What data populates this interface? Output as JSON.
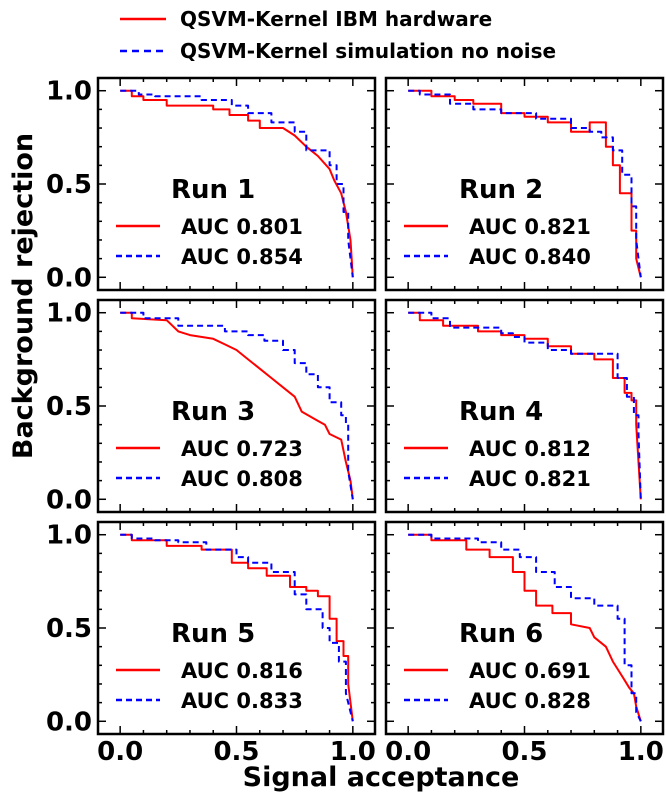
{
  "legend": {
    "hardware_label": "QSVM-Kernel IBM hardware",
    "simulation_label": "QSVM-Kernel simulation no noise"
  },
  "colors": {
    "hardware": "#ff0000",
    "simulation": "#0000ff"
  },
  "chart_data": {
    "type": "line",
    "xlabel": "Signal acceptance",
    "ylabel": "Background rejection",
    "xlim": [
      0,
      1
    ],
    "ylim": [
      0,
      1
    ],
    "x_tick_labels": [
      "0.0",
      "0.5",
      "1.0"
    ],
    "y_tick_labels": [
      "0.0",
      "0.5",
      "1.0"
    ],
    "grid": false,
    "legend_position": "top",
    "panels": [
      {
        "run_label": "Run 1",
        "series": [
          {
            "name": "QSVM-Kernel IBM hardware",
            "auc_label": "AUC 0.801",
            "x": [
              0,
              0.05,
              0.05,
              0.1,
              0.1,
              0.2,
              0.2,
              0.4,
              0.4,
              0.47,
              0.47,
              0.55,
              0.55,
              0.6,
              0.6,
              0.7,
              0.75,
              0.8,
              0.85,
              0.9,
              0.92,
              0.95,
              0.97,
              0.99,
              1.0
            ],
            "y": [
              1.0,
              1.0,
              0.97,
              0.97,
              0.95,
              0.95,
              0.92,
              0.92,
              0.9,
              0.9,
              0.87,
              0.87,
              0.84,
              0.84,
              0.8,
              0.8,
              0.76,
              0.7,
              0.65,
              0.58,
              0.52,
              0.45,
              0.35,
              0.2,
              0.0
            ]
          },
          {
            "name": "QSVM-Kernel simulation no noise",
            "auc_label": "AUC 0.854",
            "x": [
              0,
              0.08,
              0.08,
              0.15,
              0.15,
              0.35,
              0.35,
              0.48,
              0.48,
              0.55,
              0.55,
              0.65,
              0.65,
              0.75,
              0.75,
              0.8,
              0.8,
              0.9,
              0.9,
              0.93,
              0.93,
              0.96,
              0.96,
              0.98,
              0.98,
              1.0
            ],
            "y": [
              1.0,
              1.0,
              0.98,
              0.98,
              0.97,
              0.97,
              0.95,
              0.95,
              0.92,
              0.92,
              0.88,
              0.88,
              0.83,
              0.83,
              0.78,
              0.78,
              0.68,
              0.68,
              0.6,
              0.6,
              0.5,
              0.5,
              0.35,
              0.35,
              0.2,
              0.0
            ]
          }
        ]
      },
      {
        "run_label": "Run 2",
        "series": [
          {
            "name": "QSVM-Kernel IBM hardware",
            "auc_label": "AUC 0.821",
            "x": [
              0,
              0.1,
              0.1,
              0.2,
              0.2,
              0.28,
              0.28,
              0.4,
              0.4,
              0.5,
              0.5,
              0.6,
              0.6,
              0.7,
              0.7,
              0.78,
              0.78,
              0.85,
              0.85,
              0.88,
              0.88,
              0.91,
              0.91,
              0.96,
              0.96,
              0.98,
              0.98,
              1.0
            ],
            "y": [
              1.0,
              1.0,
              0.97,
              0.97,
              0.95,
              0.95,
              0.93,
              0.93,
              0.88,
              0.88,
              0.86,
              0.86,
              0.83,
              0.83,
              0.78,
              0.78,
              0.83,
              0.83,
              0.7,
              0.7,
              0.6,
              0.6,
              0.45,
              0.45,
              0.25,
              0.25,
              0.1,
              0.0
            ]
          },
          {
            "name": "QSVM-Kernel simulation no noise",
            "auc_label": "AUC 0.840",
            "x": [
              0,
              0.05,
              0.05,
              0.18,
              0.18,
              0.28,
              0.28,
              0.4,
              0.4,
              0.55,
              0.55,
              0.7,
              0.7,
              0.78,
              0.78,
              0.83,
              0.83,
              0.88,
              0.88,
              0.92,
              0.92,
              0.96,
              0.96,
              0.98,
              0.98,
              1.0
            ],
            "y": [
              1.0,
              1.0,
              0.98,
              0.98,
              0.93,
              0.93,
              0.9,
              0.9,
              0.88,
              0.88,
              0.85,
              0.85,
              0.8,
              0.8,
              0.78,
              0.78,
              0.75,
              0.75,
              0.68,
              0.68,
              0.55,
              0.55,
              0.38,
              0.38,
              0.2,
              0.0
            ]
          }
        ]
      },
      {
        "run_label": "Run 3",
        "series": [
          {
            "name": "QSVM-Kernel IBM hardware",
            "auc_label": "AUC 0.723",
            "x": [
              0,
              0.05,
              0.05,
              0.2,
              0.25,
              0.3,
              0.4,
              0.45,
              0.5,
              0.55,
              0.6,
              0.65,
              0.7,
              0.75,
              0.78,
              0.85,
              0.88,
              0.9,
              0.95,
              0.97,
              0.99,
              1.0
            ],
            "y": [
              1.0,
              1.0,
              0.97,
              0.96,
              0.9,
              0.88,
              0.86,
              0.83,
              0.8,
              0.75,
              0.7,
              0.65,
              0.6,
              0.55,
              0.47,
              0.42,
              0.4,
              0.35,
              0.32,
              0.2,
              0.1,
              0.0
            ]
          },
          {
            "name": "QSVM-Kernel simulation no noise",
            "auc_label": "AUC 0.808",
            "x": [
              0,
              0.1,
              0.1,
              0.25,
              0.25,
              0.45,
              0.45,
              0.55,
              0.55,
              0.62,
              0.62,
              0.7,
              0.7,
              0.75,
              0.75,
              0.8,
              0.8,
              0.85,
              0.85,
              0.9,
              0.9,
              0.95,
              0.95,
              0.97,
              0.97,
              0.98,
              0.98,
              1.0
            ],
            "y": [
              1.0,
              1.0,
              0.97,
              0.97,
              0.93,
              0.93,
              0.9,
              0.9,
              0.88,
              0.88,
              0.85,
              0.85,
              0.8,
              0.8,
              0.73,
              0.73,
              0.67,
              0.67,
              0.6,
              0.6,
              0.52,
              0.52,
              0.45,
              0.45,
              0.4,
              0.4,
              0.15,
              0.0
            ]
          }
        ]
      },
      {
        "run_label": "Run 4",
        "series": [
          {
            "name": "QSVM-Kernel IBM hardware",
            "auc_label": "AUC 0.812",
            "x": [
              0,
              0.05,
              0.05,
              0.15,
              0.15,
              0.3,
              0.3,
              0.4,
              0.4,
              0.5,
              0.5,
              0.6,
              0.6,
              0.7,
              0.7,
              0.8,
              0.8,
              0.88,
              0.88,
              0.93,
              0.93,
              0.96,
              0.96,
              0.98,
              0.98,
              1.0
            ],
            "y": [
              1.0,
              1.0,
              0.96,
              0.96,
              0.93,
              0.93,
              0.9,
              0.9,
              0.88,
              0.88,
              0.86,
              0.86,
              0.82,
              0.82,
              0.78,
              0.78,
              0.75,
              0.75,
              0.65,
              0.65,
              0.57,
              0.57,
              0.53,
              0.53,
              0.4,
              0.0
            ]
          },
          {
            "name": "QSVM-Kernel simulation no noise",
            "auc_label": "AUC 0.821",
            "x": [
              0,
              0.1,
              0.1,
              0.18,
              0.18,
              0.4,
              0.4,
              0.45,
              0.45,
              0.5,
              0.5,
              0.6,
              0.6,
              0.7,
              0.7,
              0.8,
              0.8,
              0.9,
              0.9,
              0.94,
              0.94,
              0.97,
              0.97,
              0.99,
              0.99,
              1.0
            ],
            "y": [
              1.0,
              1.0,
              0.97,
              0.97,
              0.92,
              0.92,
              0.89,
              0.89,
              0.87,
              0.87,
              0.84,
              0.84,
              0.8,
              0.8,
              0.78,
              0.78,
              0.78,
              0.78,
              0.65,
              0.65,
              0.55,
              0.55,
              0.45,
              0.45,
              0.35,
              0.0
            ]
          }
        ]
      },
      {
        "run_label": "Run 5",
        "series": [
          {
            "name": "QSVM-Kernel IBM hardware",
            "auc_label": "AUC 0.816",
            "x": [
              0,
              0.05,
              0.05,
              0.2,
              0.2,
              0.35,
              0.35,
              0.48,
              0.48,
              0.55,
              0.55,
              0.63,
              0.63,
              0.73,
              0.73,
              0.8,
              0.8,
              0.85,
              0.85,
              0.9,
              0.9,
              0.93,
              0.93,
              0.96,
              0.96,
              0.98,
              0.98,
              1.0
            ],
            "y": [
              1.0,
              1.0,
              0.97,
              0.97,
              0.94,
              0.94,
              0.92,
              0.92,
              0.85,
              0.85,
              0.82,
              0.82,
              0.78,
              0.78,
              0.72,
              0.72,
              0.7,
              0.7,
              0.67,
              0.67,
              0.55,
              0.55,
              0.43,
              0.43,
              0.35,
              0.35,
              0.2,
              0.0
            ]
          },
          {
            "name": "QSVM-Kernel simulation no noise",
            "auc_label": "AUC 0.833",
            "x": [
              0,
              0.05,
              0.05,
              0.15,
              0.15,
              0.25,
              0.25,
              0.37,
              0.37,
              0.5,
              0.5,
              0.55,
              0.55,
              0.65,
              0.65,
              0.75,
              0.75,
              0.8,
              0.8,
              0.87,
              0.87,
              0.9,
              0.9,
              0.94,
              0.94,
              0.97,
              0.97,
              1.0
            ],
            "y": [
              1.0,
              1.0,
              0.98,
              0.98,
              0.97,
              0.97,
              0.96,
              0.96,
              0.92,
              0.92,
              0.88,
              0.88,
              0.85,
              0.85,
              0.8,
              0.8,
              0.68,
              0.68,
              0.6,
              0.6,
              0.5,
              0.5,
              0.42,
              0.42,
              0.32,
              0.32,
              0.15,
              0.0
            ]
          }
        ]
      },
      {
        "run_label": "Run 6",
        "series": [
          {
            "name": "QSVM-Kernel IBM hardware",
            "auc_label": "AUC 0.691",
            "x": [
              0,
              0.1,
              0.1,
              0.25,
              0.25,
              0.35,
              0.35,
              0.45,
              0.45,
              0.5,
              0.5,
              0.55,
              0.55,
              0.62,
              0.62,
              0.7,
              0.7,
              0.78,
              0.8,
              0.85,
              0.88,
              0.9,
              0.93,
              0.95,
              0.97,
              0.98,
              1.0
            ],
            "y": [
              1.0,
              1.0,
              0.97,
              0.97,
              0.92,
              0.92,
              0.88,
              0.88,
              0.8,
              0.8,
              0.7,
              0.7,
              0.62,
              0.62,
              0.58,
              0.58,
              0.52,
              0.5,
              0.45,
              0.4,
              0.32,
              0.28,
              0.22,
              0.18,
              0.15,
              0.08,
              0.0
            ]
          },
          {
            "name": "QSVM-Kernel simulation no noise",
            "auc_label": "AUC 0.828",
            "x": [
              0,
              0.1,
              0.1,
              0.3,
              0.3,
              0.4,
              0.4,
              0.48,
              0.48,
              0.55,
              0.55,
              0.63,
              0.63,
              0.7,
              0.7,
              0.8,
              0.8,
              0.9,
              0.9,
              0.93,
              0.93,
              0.96,
              0.96,
              0.98,
              0.98,
              1.0
            ],
            "y": [
              1.0,
              1.0,
              0.98,
              0.98,
              0.96,
              0.96,
              0.92,
              0.92,
              0.88,
              0.88,
              0.8,
              0.8,
              0.72,
              0.72,
              0.66,
              0.66,
              0.62,
              0.62,
              0.55,
              0.55,
              0.3,
              0.3,
              0.15,
              0.15,
              0.05,
              0.0
            ]
          }
        ]
      }
    ]
  }
}
